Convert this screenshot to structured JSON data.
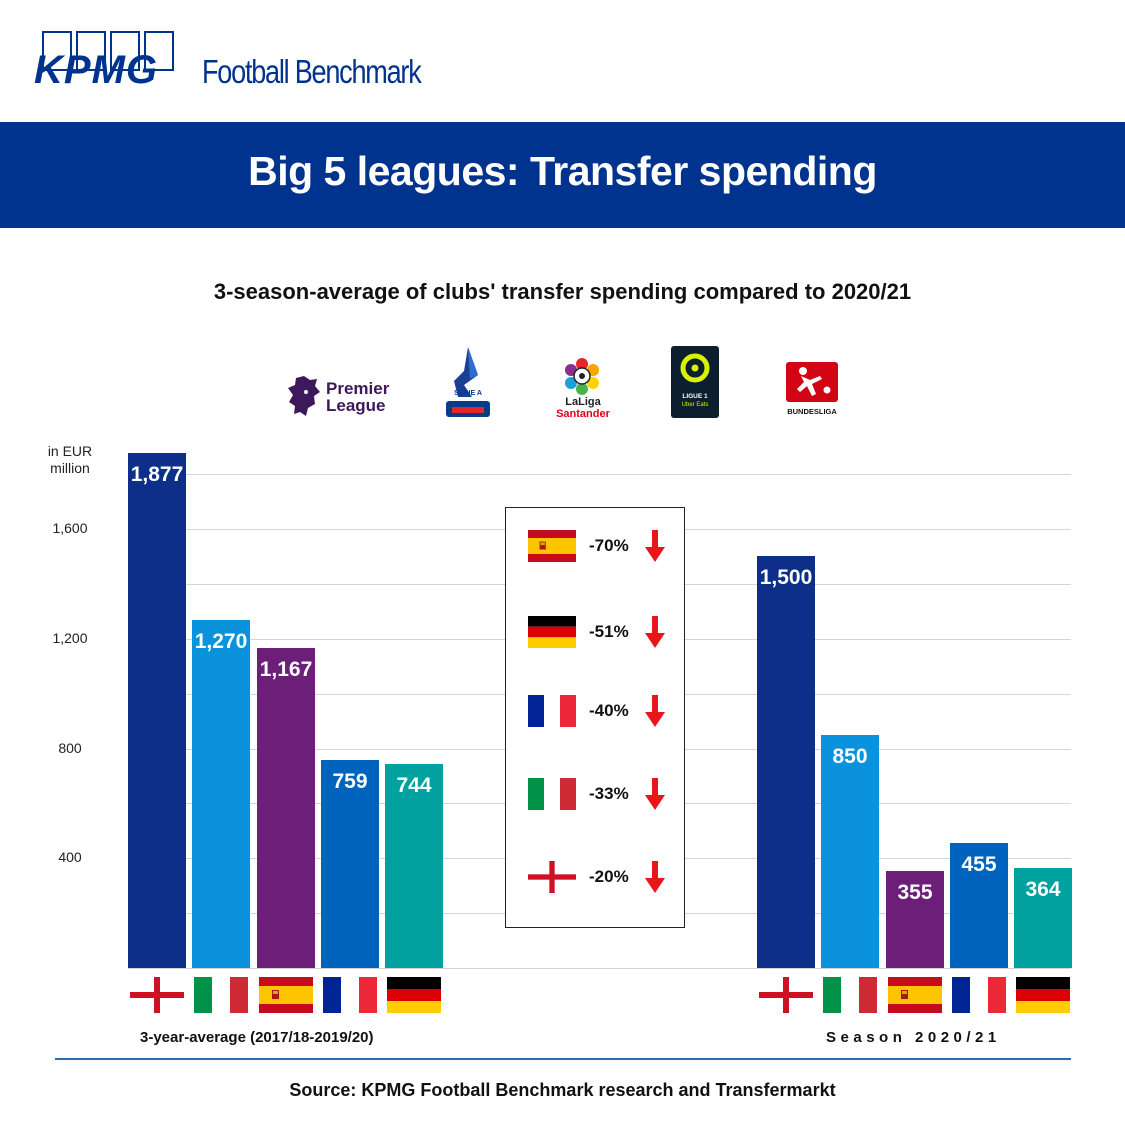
{
  "brand": {
    "logo_text": "KPMG",
    "product_name": "Football Benchmark"
  },
  "banner": {
    "title": "Big 5 leagues: Transfer spending"
  },
  "subtitle": "3-season-average of clubs' transfer spending compared to 2020/21",
  "league_logos": {
    "premier_league": [
      "Premier",
      "League"
    ],
    "serie_a": "SERIE A",
    "laliga": [
      "LaLiga",
      "Santander"
    ],
    "ligue1": [
      "LIGUE 1",
      "Uber Eats"
    ],
    "bundesliga": "BUNDESLIGA"
  },
  "colors": {
    "banner": "#00338d",
    "england": "#0d2f8a",
    "italy": "#0a93dc",
    "spain": "#6b1f79",
    "france": "#0063bd",
    "germany": "#00a19e",
    "arrow": "#e8161b"
  },
  "chart_data": {
    "type": "bar",
    "ylabel": "in EUR million",
    "yticks": [
      400,
      800,
      1200,
      1600
    ],
    "ytick_labels": [
      "400",
      "800",
      "1,200",
      "1,600"
    ],
    "ylim": [
      0,
      1900
    ],
    "grid": true,
    "categories": [
      "England",
      "Italy",
      "Spain",
      "France",
      "Germany"
    ],
    "groups": [
      {
        "name": "3-year-average (2017/18-2019/20)",
        "values": [
          1877,
          1270,
          1167,
          759,
          744
        ],
        "labels": [
          "1,877",
          "1,270",
          "1,167",
          "759",
          "744"
        ]
      },
      {
        "name": "Season 2020/21",
        "values": [
          1500,
          850,
          355,
          455,
          364
        ],
        "labels": [
          "1,500",
          "850",
          "355",
          "455",
          "364"
        ]
      }
    ],
    "changes": [
      {
        "country": "Spain",
        "label": "-70%",
        "direction": "down"
      },
      {
        "country": "Germany",
        "label": "-51%",
        "direction": "down"
      },
      {
        "country": "France",
        "label": "-40%",
        "direction": "down"
      },
      {
        "country": "Italy",
        "label": "-33%",
        "direction": "down"
      },
      {
        "country": "England",
        "label": "-20%",
        "direction": "down"
      }
    ]
  },
  "source": "Source: KPMG Football Benchmark research and Transfermarkt"
}
